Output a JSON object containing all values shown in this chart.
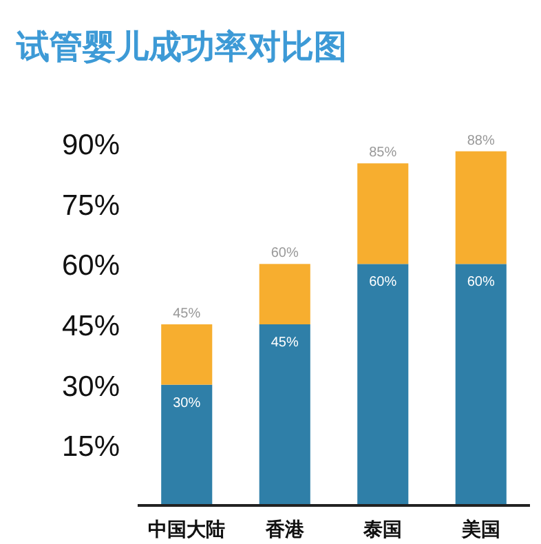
{
  "chart_data": {
    "type": "bar",
    "title": "试管婴儿成功率对比图",
    "stacked": true,
    "categories": [
      "中国大陆",
      "香港",
      "泰国",
      "美国"
    ],
    "series": [
      {
        "color": "#2f7fa8",
        "values": [
          30,
          45,
          60,
          60
        ],
        "value_labels": [
          "30%",
          "45%",
          "60%",
          "60%"
        ]
      },
      {
        "color": "#f7ae2f",
        "values": [
          15,
          15,
          25,
          28
        ]
      }
    ],
    "totals": [
      "45%",
      "60%",
      "85%",
      "88%"
    ],
    "ylim": [
      0,
      90
    ],
    "yticks": [
      {
        "value": 15,
        "label": "15%"
      },
      {
        "value": 30,
        "label": "30%"
      },
      {
        "value": 45,
        "label": "45%"
      },
      {
        "value": 60,
        "label": "60%"
      },
      {
        "value": 75,
        "label": "75%"
      },
      {
        "value": 90,
        "label": "90%"
      }
    ]
  }
}
